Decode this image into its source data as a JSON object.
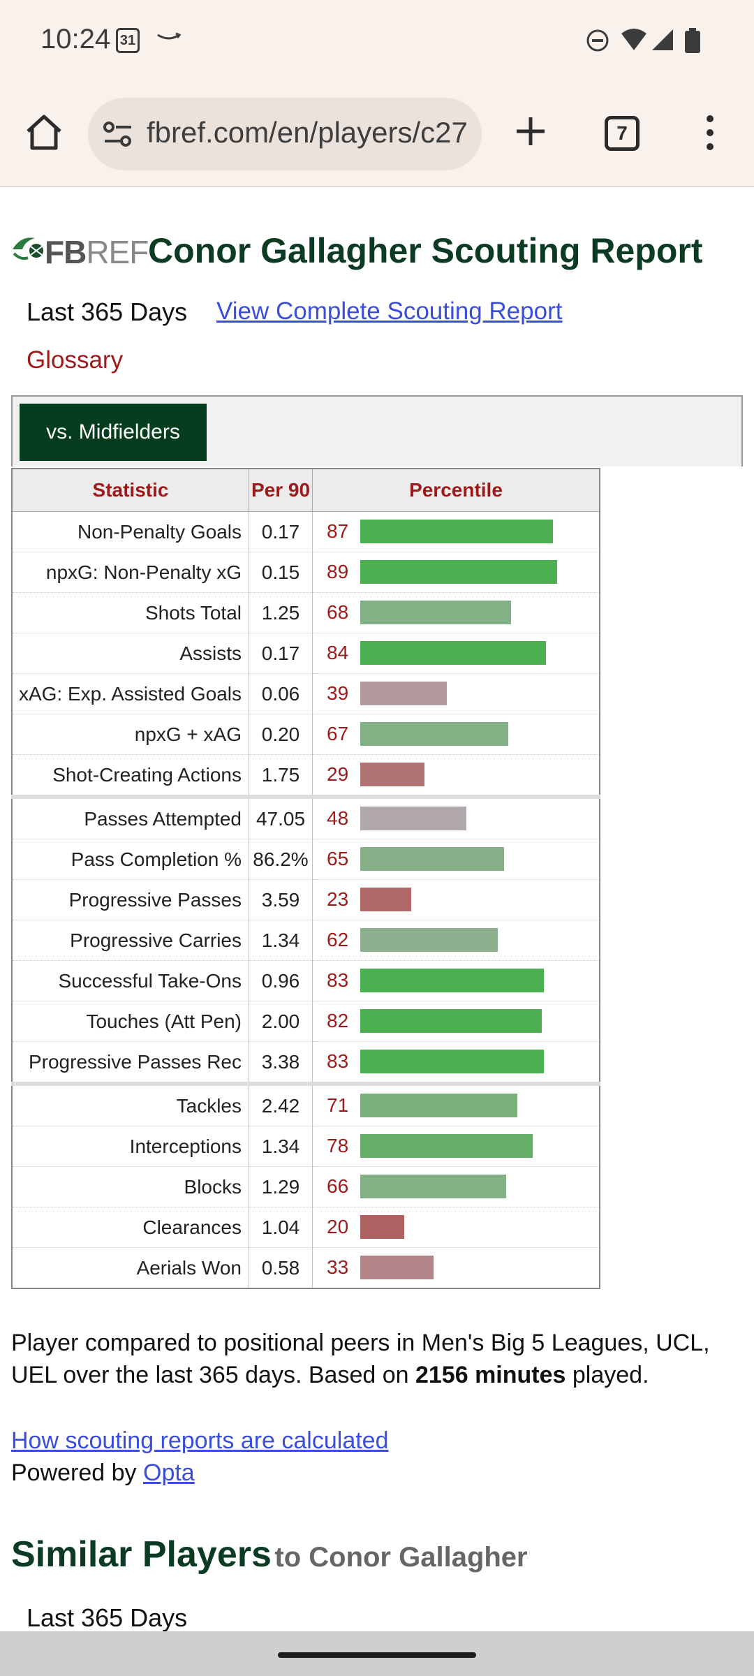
{
  "status_bar": {
    "time": "10:24",
    "calendar_day": "31"
  },
  "browser": {
    "url": "fbref.com/en/players/c27",
    "tab_count": "7"
  },
  "site": {
    "logo_fb": "FB",
    "logo_ref": "REF",
    "title": "Conor Gallagher Scouting Report"
  },
  "report": {
    "period": "Last 365 Days",
    "complete_link": "View Complete Scouting Report",
    "glossary": "Glossary",
    "active_tab": "vs. Midfielders",
    "columns": [
      "Statistic",
      "Per 90",
      "Percentile"
    ],
    "rows": [
      {
        "stat": "Non-Penalty Goals",
        "per90": "0.17",
        "pct": "87",
        "color": "#4caf50"
      },
      {
        "stat": "npxG: Non-Penalty xG",
        "per90": "0.15",
        "pct": "89",
        "color": "#4caf50"
      },
      {
        "stat": "Shots Total",
        "per90": "1.25",
        "pct": "68",
        "color": "#81b184"
      },
      {
        "stat": "Assists",
        "per90": "0.17",
        "pct": "84",
        "color": "#4caf50"
      },
      {
        "stat": "xAG: Exp. Assisted Goals",
        "per90": "0.06",
        "pct": "39",
        "color": "#b39a9c"
      },
      {
        "stat": "npxG + xAG",
        "per90": "0.20",
        "pct": "67",
        "color": "#81b184"
      },
      {
        "stat": "Shot-Creating Actions",
        "per90": "1.75",
        "pct": "29",
        "color": "#b07272"
      },
      {
        "stat": "Passes Attempted",
        "per90": "47.05",
        "pct": "48",
        "color": "#b0a8ab"
      },
      {
        "stat": "Pass Completion %",
        "per90": "86.2%",
        "pct": "65",
        "color": "#86b087"
      },
      {
        "stat": "Progressive Passes",
        "per90": "3.59",
        "pct": "23",
        "color": "#b06767"
      },
      {
        "stat": "Progressive Carries",
        "per90": "1.34",
        "pct": "62",
        "color": "#8fb08f"
      },
      {
        "stat": "Successful Take-Ons",
        "per90": "0.96",
        "pct": "83",
        "color": "#4caf50"
      },
      {
        "stat": "Touches (Att Pen)",
        "per90": "2.00",
        "pct": "82",
        "color": "#4caf50"
      },
      {
        "stat": "Progressive Passes Rec",
        "per90": "3.38",
        "pct": "83",
        "color": "#4caf50"
      },
      {
        "stat": "Tackles",
        "per90": "2.42",
        "pct": "71",
        "color": "#7bb07c"
      },
      {
        "stat": "Interceptions",
        "per90": "1.34",
        "pct": "78",
        "color": "#66ad68"
      },
      {
        "stat": "Blocks",
        "per90": "1.29",
        "pct": "66",
        "color": "#83b084"
      },
      {
        "stat": "Clearances",
        "per90": "1.04",
        "pct": "20",
        "color": "#ae6262"
      },
      {
        "stat": "Aerials Won",
        "per90": "0.58",
        "pct": "33",
        "color": "#b08488"
      }
    ],
    "summary_part1": "Player compared to positional peers in Men's Big 5 Leagues, UCL, UEL over the last 365 days. Based on ",
    "summary_minutes": "2156 minutes",
    "summary_part2": " played.",
    "how_link": "How scouting reports are calculated",
    "powered_by": "Powered by ",
    "powered_link": "Opta"
  },
  "similar": {
    "heading": "Similar Players",
    "subheading": "to Conor Gallagher",
    "period": "Last 365 Days"
  }
}
